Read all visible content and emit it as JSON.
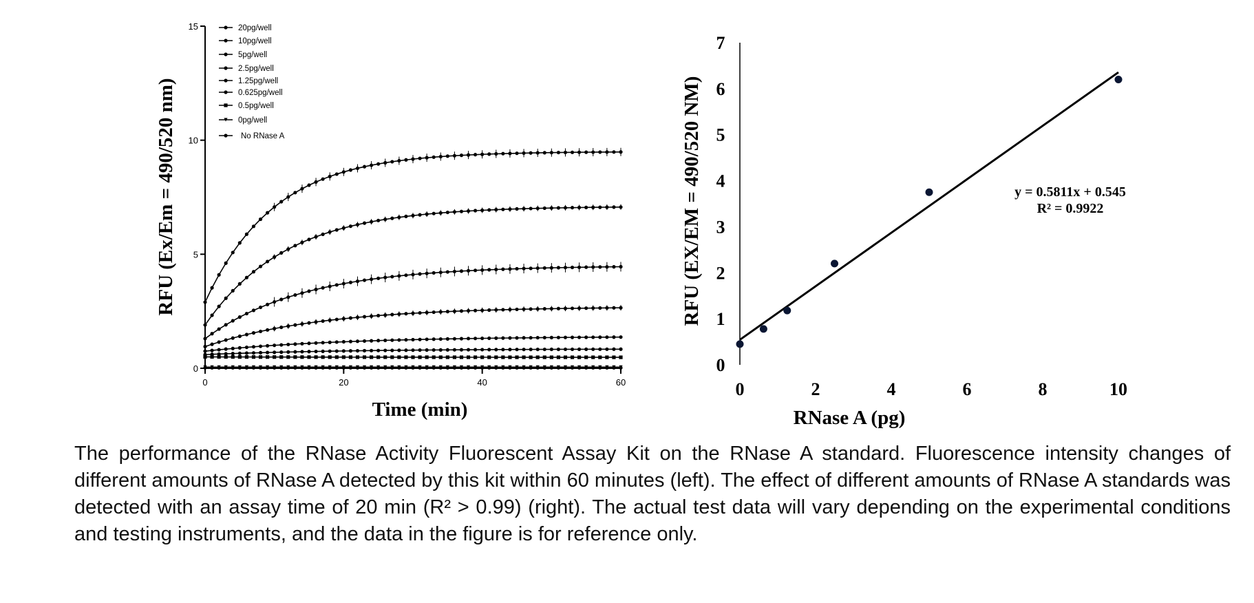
{
  "chart_data": [
    {
      "type": "line",
      "xlabel": "Time (min)",
      "ylabel": "RFU (Ex/Em = 490/520 nm)",
      "xlim": [
        0,
        60
      ],
      "ylim": [
        0,
        15
      ],
      "xticks": [
        "0",
        "20",
        "40",
        "60"
      ],
      "yticks": [
        "0",
        "5",
        "10",
        "15"
      ],
      "legend_position": "top-left",
      "grid": false,
      "series": [
        {
          "name": "20pg/well",
          "marker": "dot",
          "start": 2.9,
          "plateau": 9.5,
          "k": 0.1
        },
        {
          "name": "10pg/well",
          "marker": "dot",
          "start": 1.9,
          "plateau": 7.1,
          "k": 0.085
        },
        {
          "name": "5pg/well",
          "marker": "dot",
          "start": 1.3,
          "plateau": 4.5,
          "k": 0.07
        },
        {
          "name": "2.5pg/well",
          "marker": "dot",
          "start": 0.95,
          "plateau": 2.7,
          "k": 0.06
        },
        {
          "name": "1.25pg/well",
          "marker": "dot",
          "start": 0.75,
          "plateau": 1.4,
          "k": 0.05
        },
        {
          "name": "0.625pg/well",
          "marker": "dot",
          "start": 0.6,
          "plateau": 0.85,
          "k": 0.05
        },
        {
          "name": "0.5pg/well",
          "marker": "square",
          "start": 0.5,
          "plateau": 0.48,
          "k": 0.05
        },
        {
          "name": "0pg/well",
          "marker": "triangle",
          "start": 0.05,
          "plateau": 0.05,
          "k": 0.05
        },
        {
          "name": "No RNase A",
          "marker": "dot",
          "start": 0.02,
          "plateau": 0.02,
          "k": 0.05
        }
      ]
    },
    {
      "type": "scatter",
      "xlabel": "RNase A (pg)",
      "ylabel": "RFU  (EX/EM = 490/520 NM)",
      "xlim": [
        0,
        10
      ],
      "ylim": [
        0,
        7
      ],
      "xticks": [
        "0",
        "2",
        "4",
        "6",
        "8",
        "10"
      ],
      "yticks": [
        "0",
        "1",
        "2",
        "3",
        "4",
        "5",
        "6",
        "7"
      ],
      "grid": false,
      "points": [
        {
          "x": 0,
          "y": 0.45
        },
        {
          "x": 0.625,
          "y": 0.78
        },
        {
          "x": 1.25,
          "y": 1.18
        },
        {
          "x": 2.5,
          "y": 2.2
        },
        {
          "x": 5,
          "y": 3.75
        },
        {
          "x": 10,
          "y": 6.2
        }
      ],
      "fit": {
        "slope": 0.5811,
        "intercept": 0.545
      },
      "equation_label": "y = 0.5811x + 0.545",
      "r2_label": "R² = 0.9922"
    }
  ],
  "caption": "The performance of the RNase Activity Fluorescent Assay Kit on the RNase A standard. Fluorescence intensity changes of different amounts of RNase A detected by this kit within 60 minutes (left). The effect of different amounts of RNase A standards was detected with an assay time of 20 min (R² > 0.99) (right). The actual test data will vary depending on the experimental conditions and testing instruments, and the data in the figure is for reference only."
}
